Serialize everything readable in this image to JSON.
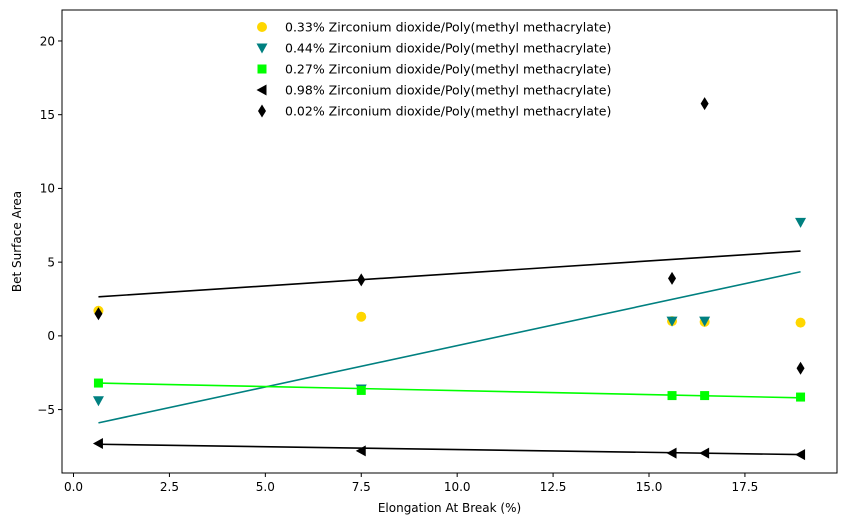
{
  "chart_data": {
    "type": "scatter",
    "title": "",
    "xlabel": "Elongation At Break (%)",
    "ylabel": "Bet Surface Area",
    "xlim": [
      -0.3,
      19.9
    ],
    "ylim": [
      -9.3,
      22.1
    ],
    "xticks": [
      0.0,
      2.5,
      5.0,
      7.5,
      10.0,
      12.5,
      15.0,
      17.5
    ],
    "xtick_labels": [
      "0.0",
      "2.5",
      "5.0",
      "7.5",
      "10.0",
      "12.5",
      "15.0",
      "17.5"
    ],
    "yticks": [
      -5,
      0,
      5,
      10,
      15,
      20
    ],
    "ytick_labels": [
      "−5",
      "0",
      "5",
      "10",
      "15",
      "20"
    ],
    "grid": false,
    "legend_position": "top-center",
    "series": [
      {
        "name": "0.33% Zirconium dioxide/Poly(methyl methacrylate)",
        "color": "#ffd700",
        "marker": "circle",
        "x": [
          0.65,
          7.5,
          15.6,
          16.45,
          18.95
        ],
        "y": [
          1.7,
          1.3,
          1.0,
          0.95,
          0.9
        ],
        "trend": null
      },
      {
        "name": "0.44% Zirconium dioxide/Poly(methyl methacrylate)",
        "color": "#008080",
        "marker": "triangle-down",
        "x": [
          0.65,
          7.5,
          15.6,
          16.45,
          18.95
        ],
        "y": [
          -4.4,
          -3.6,
          1.0,
          1.0,
          7.7
        ],
        "trend": {
          "x": [
            0.65,
            18.95
          ],
          "y": [
            -5.9,
            4.35
          ]
        }
      },
      {
        "name": "0.27% Zirconium dioxide/Poly(methyl methacrylate)",
        "color": "#00ff00",
        "marker": "square",
        "x": [
          0.65,
          7.5,
          15.6,
          16.45,
          18.95
        ],
        "y": [
          -3.2,
          -3.7,
          -4.05,
          -4.05,
          -4.15
        ],
        "trend": {
          "x": [
            0.65,
            18.95
          ],
          "y": [
            -3.2,
            -4.2
          ]
        }
      },
      {
        "name": "0.98% Zirconium dioxide/Poly(methyl methacrylate)",
        "color": "#000000",
        "marker": "triangle-left",
        "x": [
          0.65,
          7.5,
          15.6,
          16.45,
          18.95
        ],
        "y": [
          -7.3,
          -7.8,
          -7.95,
          -7.95,
          -8.05
        ],
        "trend": {
          "x": [
            0.65,
            18.95
          ],
          "y": [
            -7.35,
            -8.05
          ]
        }
      },
      {
        "name": "0.02% Zirconium dioxide/Poly(methyl methacrylate)",
        "color": "#000000",
        "marker": "thin-diamond",
        "x": [
          0.65,
          7.5,
          15.6,
          16.45,
          18.95
        ],
        "y": [
          1.5,
          3.8,
          3.9,
          15.75,
          -2.2
        ],
        "trend": {
          "x": [
            0.65,
            18.95
          ],
          "y": [
            2.65,
            5.75
          ]
        }
      }
    ]
  }
}
